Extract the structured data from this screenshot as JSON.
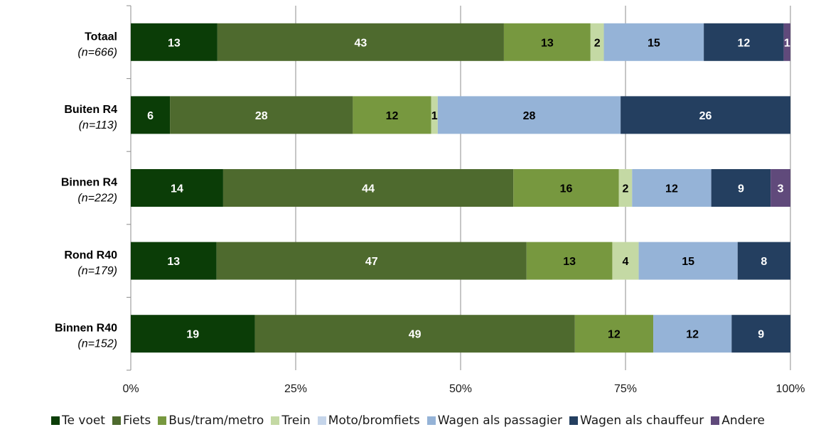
{
  "chart_data": {
    "type": "bar",
    "orientation": "horizontal",
    "stacked": "percent",
    "categories": [
      {
        "name": "Totaal",
        "n": "(n=666)"
      },
      {
        "name": "Buiten R4",
        "n": "(n=113)"
      },
      {
        "name": "Binnen R4",
        "n": "(n=222)"
      },
      {
        "name": "Rond R40",
        "n": "(n=179)"
      },
      {
        "name": "Binnen R40",
        "n": "(n=152)"
      }
    ],
    "series": [
      {
        "name": "Te voet",
        "color": "#0b3d07",
        "label_color": "#ffffff",
        "values": [
          13,
          6,
          14,
          13,
          19
        ]
      },
      {
        "name": "Fiets",
        "color": "#4e6a2e",
        "label_color": "#ffffff",
        "values": [
          43,
          28,
          44,
          47,
          49
        ]
      },
      {
        "name": "Bus/tram/metro",
        "color": "#77983f",
        "label_color": "#000000",
        "values": [
          13,
          12,
          16,
          13,
          12
        ]
      },
      {
        "name": "Trein",
        "color": "#c4d9a4",
        "label_color": "#000000",
        "values": [
          2,
          1,
          2,
          4,
          0
        ]
      },
      {
        "name": "Moto/bromfiets",
        "color": "#c5d5ea",
        "label_color": "#000000",
        "values": [
          0,
          0,
          0,
          0,
          0
        ]
      },
      {
        "name": "Wagen als passagier",
        "color": "#95b3d7",
        "label_color": "#000000",
        "values": [
          15,
          28,
          12,
          15,
          12
        ]
      },
      {
        "name": "Wagen als chauffeur",
        "color": "#243f60",
        "label_color": "#ffffff",
        "values": [
          12,
          26,
          9,
          8,
          9
        ]
      },
      {
        "name": "Andere",
        "color": "#604a7b",
        "label_color": "#ffffff",
        "values": [
          1,
          0,
          3,
          0,
          0
        ]
      }
    ],
    "xlim": [
      0,
      100
    ],
    "x_ticks": [
      "0%",
      "25%",
      "50%",
      "75%",
      "100%"
    ],
    "grid": true,
    "legend_position": "bottom"
  }
}
